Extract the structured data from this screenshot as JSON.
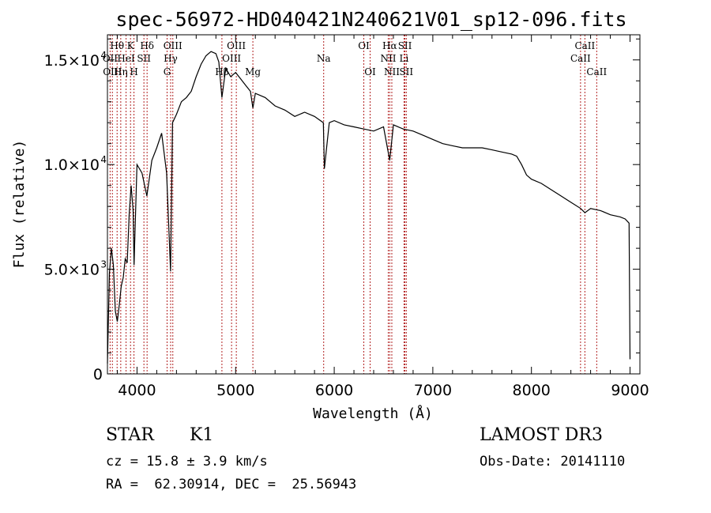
{
  "chart_data": {
    "type": "line",
    "title": "spec-56972-HD040421N240621V01_sp12-096.fits",
    "xlabel": "Wavelength (Å)",
    "ylabel": "Flux (relative)",
    "xlim": [
      3700,
      9100
    ],
    "ylim": [
      0,
      16200
    ],
    "x_ticks": [
      4000,
      5000,
      6000,
      7000,
      8000,
      9000
    ],
    "x_tick_labels": [
      "4000",
      "5000",
      "6000",
      "7000",
      "8000",
      "9000"
    ],
    "y_ticks": [
      0,
      5000,
      10000,
      15000
    ],
    "y_tick_labels": [
      "0",
      "5.0×10",
      "1.0×10",
      "1.5×10"
    ],
    "y_tick_exponents": [
      "",
      "3",
      "4",
      "4"
    ],
    "spectrum": {
      "x": [
        3700,
        3720,
        3740,
        3760,
        3780,
        3800,
        3820,
        3840,
        3860,
        3880,
        3900,
        3920,
        3940,
        3960,
        3970,
        3980,
        4000,
        4050,
        4100,
        4150,
        4200,
        4250,
        4300,
        4340,
        4360,
        4400,
        4450,
        4500,
        4550,
        4600,
        4650,
        4700,
        4750,
        4800,
        4830,
        4861,
        4900,
        4950,
        5000,
        5050,
        5100,
        5150,
        5175,
        5200,
        5300,
        5400,
        5500,
        5600,
        5700,
        5800,
        5890,
        5900,
        5950,
        6000,
        6100,
        6200,
        6300,
        6400,
        6500,
        6563,
        6600,
        6700,
        6800,
        6900,
        7000,
        7100,
        7200,
        7300,
        7400,
        7500,
        7600,
        7700,
        7800,
        7850,
        7900,
        7950,
        8000,
        8100,
        8200,
        8300,
        8400,
        8500,
        8542,
        8600,
        8700,
        8800,
        8900,
        8950,
        8990,
        9000
      ],
      "y": [
        500,
        4800,
        6000,
        5200,
        3000,
        2500,
        3300,
        4200,
        4600,
        5500,
        5300,
        7600,
        9000,
        7800,
        5200,
        6800,
        10000,
        9600,
        8500,
        10200,
        10800,
        11500,
        9600,
        4900,
        12000,
        12400,
        13000,
        13200,
        13500,
        14200,
        14800,
        15200,
        15400,
        15300,
        14900,
        13200,
        14600,
        14200,
        14400,
        14100,
        13800,
        13500,
        12700,
        13400,
        13200,
        12800,
        12600,
        12300,
        12500,
        12300,
        12000,
        9800,
        12000,
        12100,
        11900,
        11800,
        11700,
        11600,
        11800,
        10200,
        11900,
        11700,
        11600,
        11400,
        11200,
        11000,
        10900,
        10800,
        10800,
        10800,
        10700,
        10600,
        10500,
        10400,
        10000,
        9500,
        9300,
        9100,
        8800,
        8500,
        8200,
        7900,
        7700,
        7900,
        7800,
        7600,
        7500,
        7400,
        7200,
        700
      ]
    },
    "lines": [
      {
        "name": "Hθ",
        "x": 3798,
        "row": 1
      },
      {
        "name": "OII",
        "x": 3727,
        "row": 2
      },
      {
        "name": "OIII",
        "x": 3750,
        "row": 3
      },
      {
        "name": "K",
        "x": 3934,
        "row": 1
      },
      {
        "name": "HeI",
        "x": 3889,
        "row": 2
      },
      {
        "name": "Hη",
        "x": 3835,
        "row": 3
      },
      {
        "name": "Hδ",
        "x": 4102,
        "row": 1
      },
      {
        "name": "SII",
        "x": 4070,
        "row": 2
      },
      {
        "name": "H",
        "x": 3969,
        "row": 3
      },
      {
        "name": "OIII",
        "x": 4363,
        "row": 1
      },
      {
        "name": "Hγ",
        "x": 4341,
        "row": 2
      },
      {
        "name": "G",
        "x": 4305,
        "row": 3
      },
      {
        "name": "OIII",
        "x": 5007,
        "row": 1
      },
      {
        "name": "OIII",
        "x": 4959,
        "row": 2
      },
      {
        "name": "Hβ",
        "x": 4861,
        "row": 3
      },
      {
        "name": "Mg",
        "x": 5175,
        "row": 3
      },
      {
        "name": "Na",
        "x": 5893,
        "row": 2
      },
      {
        "name": "OI",
        "x": 6300,
        "row": 1
      },
      {
        "name": "OI",
        "x": 6364,
        "row": 3
      },
      {
        "name": "Hα",
        "x": 6563,
        "row": 1
      },
      {
        "name": "NII",
        "x": 6548,
        "row": 2
      },
      {
        "name": "NII",
        "x": 6584,
        "row": 3
      },
      {
        "name": "SII",
        "x": 6717,
        "row": 1
      },
      {
        "name": "Li",
        "x": 6708,
        "row": 2
      },
      {
        "name": "SII",
        "x": 6731,
        "row": 3
      },
      {
        "name": "CaII",
        "x": 8542,
        "row": 1
      },
      {
        "name": "CaII",
        "x": 8498,
        "row": 2
      },
      {
        "name": "CaII",
        "x": 8662,
        "row": 3
      }
    ]
  },
  "info": {
    "class_label": "STAR",
    "subclass": "K1",
    "cz": "cz = 15.8 ± 3.9 km/s",
    "coords": "RA =  62.30914, DEC =  25.56943",
    "survey": "LAMOST DR3",
    "obs_date": "Obs-Date: 20141110"
  },
  "colors": {
    "ink": "#000000",
    "line_marker": "#b22222"
  }
}
